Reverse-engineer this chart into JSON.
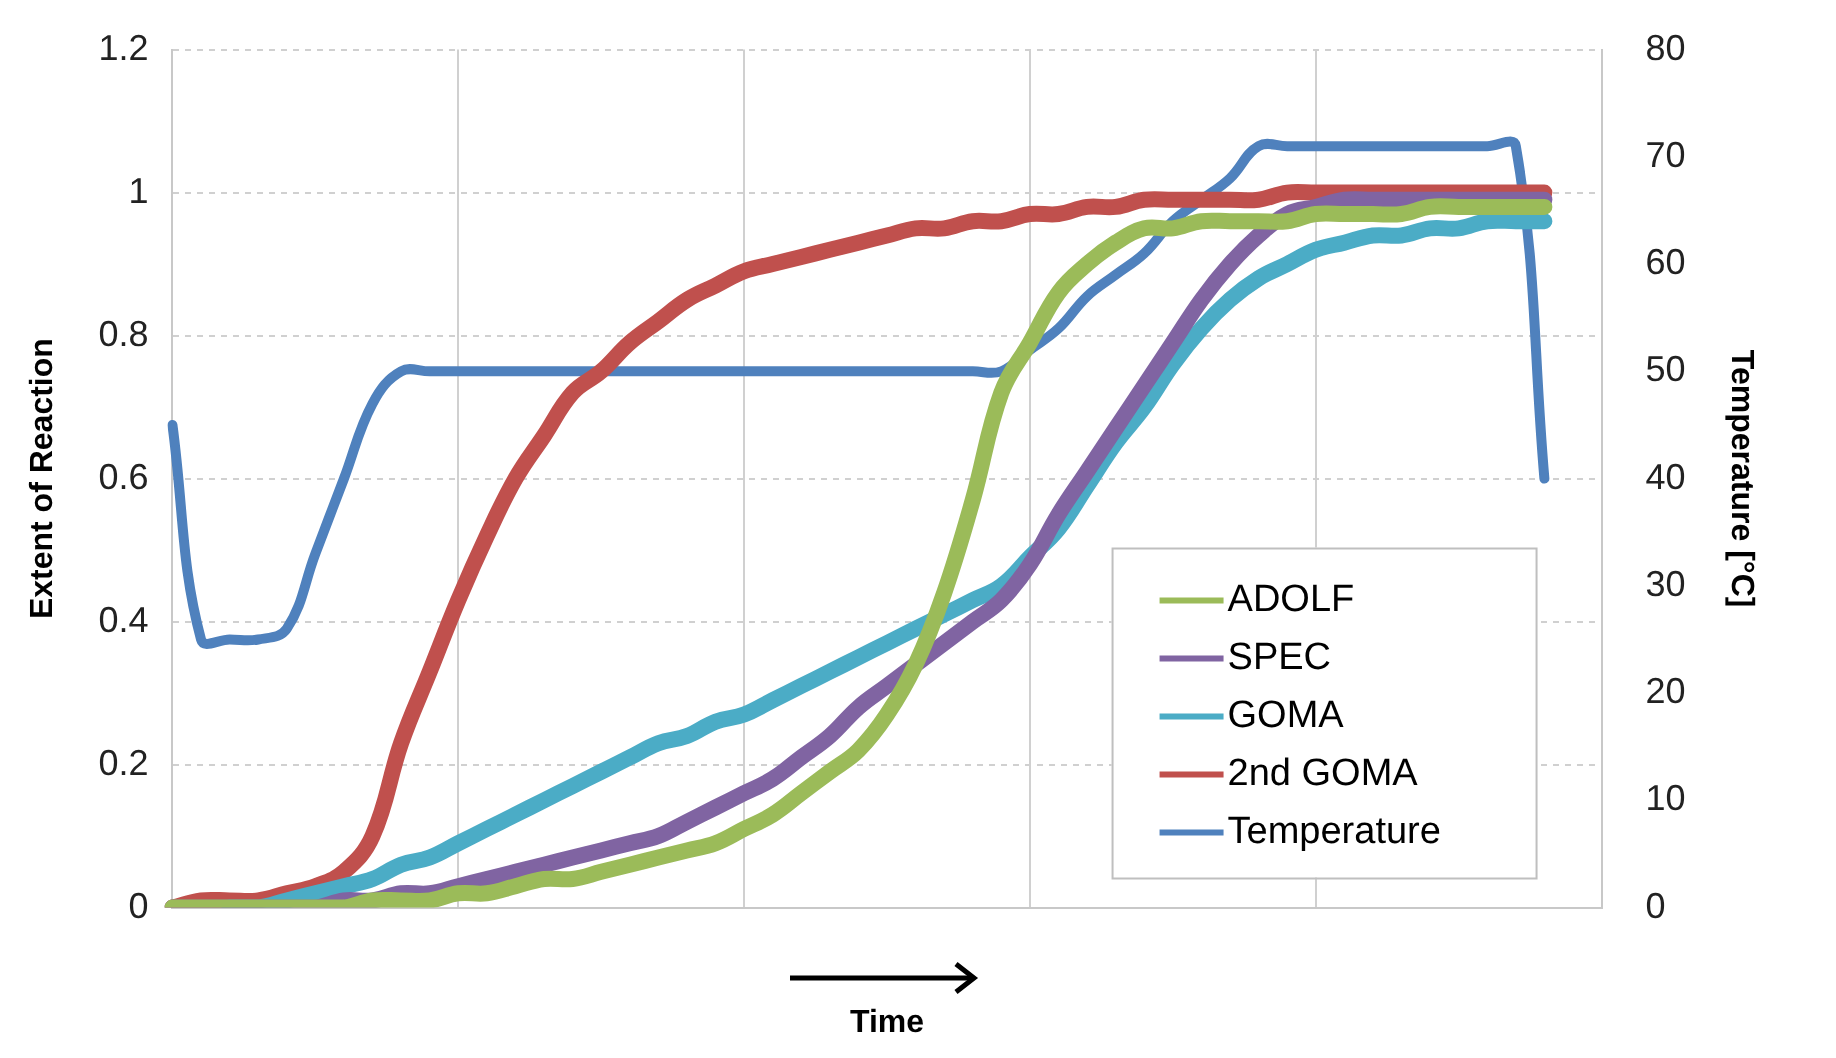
{
  "chart_data": {
    "type": "line",
    "xlabel": "Time",
    "ylabel": "Extent of Reaction",
    "y2label": "Temperature [°C]",
    "categories": [
      null,
      null,
      null,
      null,
      null,
      null,
      null,
      null,
      null,
      null,
      null,
      null,
      null,
      null,
      null,
      null,
      null,
      null,
      null,
      null,
      null,
      null,
      null,
      null,
      null,
      null,
      null,
      null,
      null,
      null,
      null,
      null,
      null,
      null,
      null,
      null,
      null,
      null,
      null,
      null,
      null,
      null,
      null,
      null,
      null,
      null,
      null,
      null,
      null,
      null,
      null
    ],
    "series": [
      {
        "name": "ADOLF",
        "color": "#9bbb59",
        "values": [
          0,
          0,
          0,
          0,
          0,
          0,
          0,
          0.01,
          0.01,
          0.01,
          0.02,
          0.02,
          0.03,
          0.04,
          0.04,
          0.05,
          0.06,
          0.07,
          0.08,
          0.09,
          0.11,
          0.13,
          0.16,
          0.19,
          0.22,
          0.27,
          0.34,
          0.44,
          0.57,
          0.72,
          0.79,
          0.86,
          0.9,
          0.93,
          0.95,
          0.95,
          0.96,
          0.96,
          0.96,
          0.96,
          0.97,
          0.97,
          0.97,
          0.97,
          0.98,
          0.98,
          0.98,
          0.98,
          0.98,
          null,
          null
        ]
      },
      {
        "name": "SPEC",
        "color": "#8064a2",
        "values": [
          0,
          0,
          0,
          0,
          0,
          0,
          0.01,
          0.01,
          0.02,
          0.02,
          0.03,
          0.04,
          0.05,
          0.06,
          0.07,
          0.08,
          0.09,
          0.1,
          0.12,
          0.14,
          0.16,
          0.18,
          0.21,
          0.24,
          0.28,
          0.31,
          0.34,
          0.37,
          0.4,
          0.43,
          0.48,
          0.55,
          0.61,
          0.67,
          0.73,
          0.79,
          0.85,
          0.9,
          0.94,
          0.97,
          0.98,
          0.99,
          0.99,
          0.99,
          0.99,
          0.99,
          0.99,
          0.99,
          0.99,
          null,
          null
        ]
      },
      {
        "name": "GOMA",
        "color": "#4bacc6",
        "values": [
          null,
          null,
          0,
          0,
          0.01,
          0.02,
          0.03,
          0.04,
          0.06,
          0.07,
          0.09,
          0.11,
          0.13,
          0.15,
          0.17,
          0.19,
          0.21,
          0.23,
          0.24,
          0.26,
          0.27,
          0.29,
          0.31,
          0.33,
          0.35,
          0.37,
          0.39,
          0.41,
          0.43,
          0.45,
          0.49,
          0.53,
          0.59,
          0.65,
          0.7,
          0.76,
          0.81,
          0.85,
          0.88,
          0.9,
          0.92,
          0.93,
          0.94,
          0.94,
          0.95,
          0.95,
          0.96,
          0.96,
          0.96,
          null,
          null
        ]
      },
      {
        "name": "2nd GOMA",
        "color": "#c0504d",
        "values": [
          0,
          0.01,
          0.01,
          0.01,
          0.02,
          0.03,
          0.05,
          0.1,
          0.23,
          0.33,
          0.43,
          0.52,
          0.6,
          0.66,
          0.72,
          0.75,
          0.79,
          0.82,
          0.85,
          0.87,
          0.89,
          0.9,
          0.91,
          0.92,
          0.93,
          0.94,
          0.95,
          0.95,
          0.96,
          0.96,
          0.97,
          0.97,
          0.98,
          0.98,
          0.99,
          0.99,
          0.99,
          0.99,
          0.99,
          1,
          1,
          1,
          1,
          1,
          1,
          1,
          1,
          1,
          1,
          null,
          null
        ]
      },
      {
        "name": "Temperature",
        "color": "#4f81bd",
        "axis": "y2",
        "values": [
          45,
          25,
          25,
          25,
          26,
          33,
          40,
          47,
          50,
          50,
          50,
          50,
          50,
          50,
          50,
          50,
          50,
          50,
          50,
          50,
          50,
          50,
          50,
          50,
          50,
          50,
          50,
          50,
          50,
          50,
          52,
          54,
          57,
          59,
          61,
          64,
          66,
          68,
          71,
          71,
          71,
          71,
          71,
          71,
          71,
          71,
          71,
          71,
          40,
          null,
          null
        ]
      }
    ],
    "ylim": [
      0,
      1.2
    ],
    "yticks": [
      0,
      0.2,
      0.4,
      0.6,
      0.8,
      1,
      1.2
    ],
    "y2lim": [
      0,
      80
    ],
    "y2ticks": [
      0,
      10,
      20,
      30,
      40,
      50,
      60,
      70,
      80
    ],
    "grid": true,
    "legend": "bottom right",
    "tick_labels": "y"
  }
}
